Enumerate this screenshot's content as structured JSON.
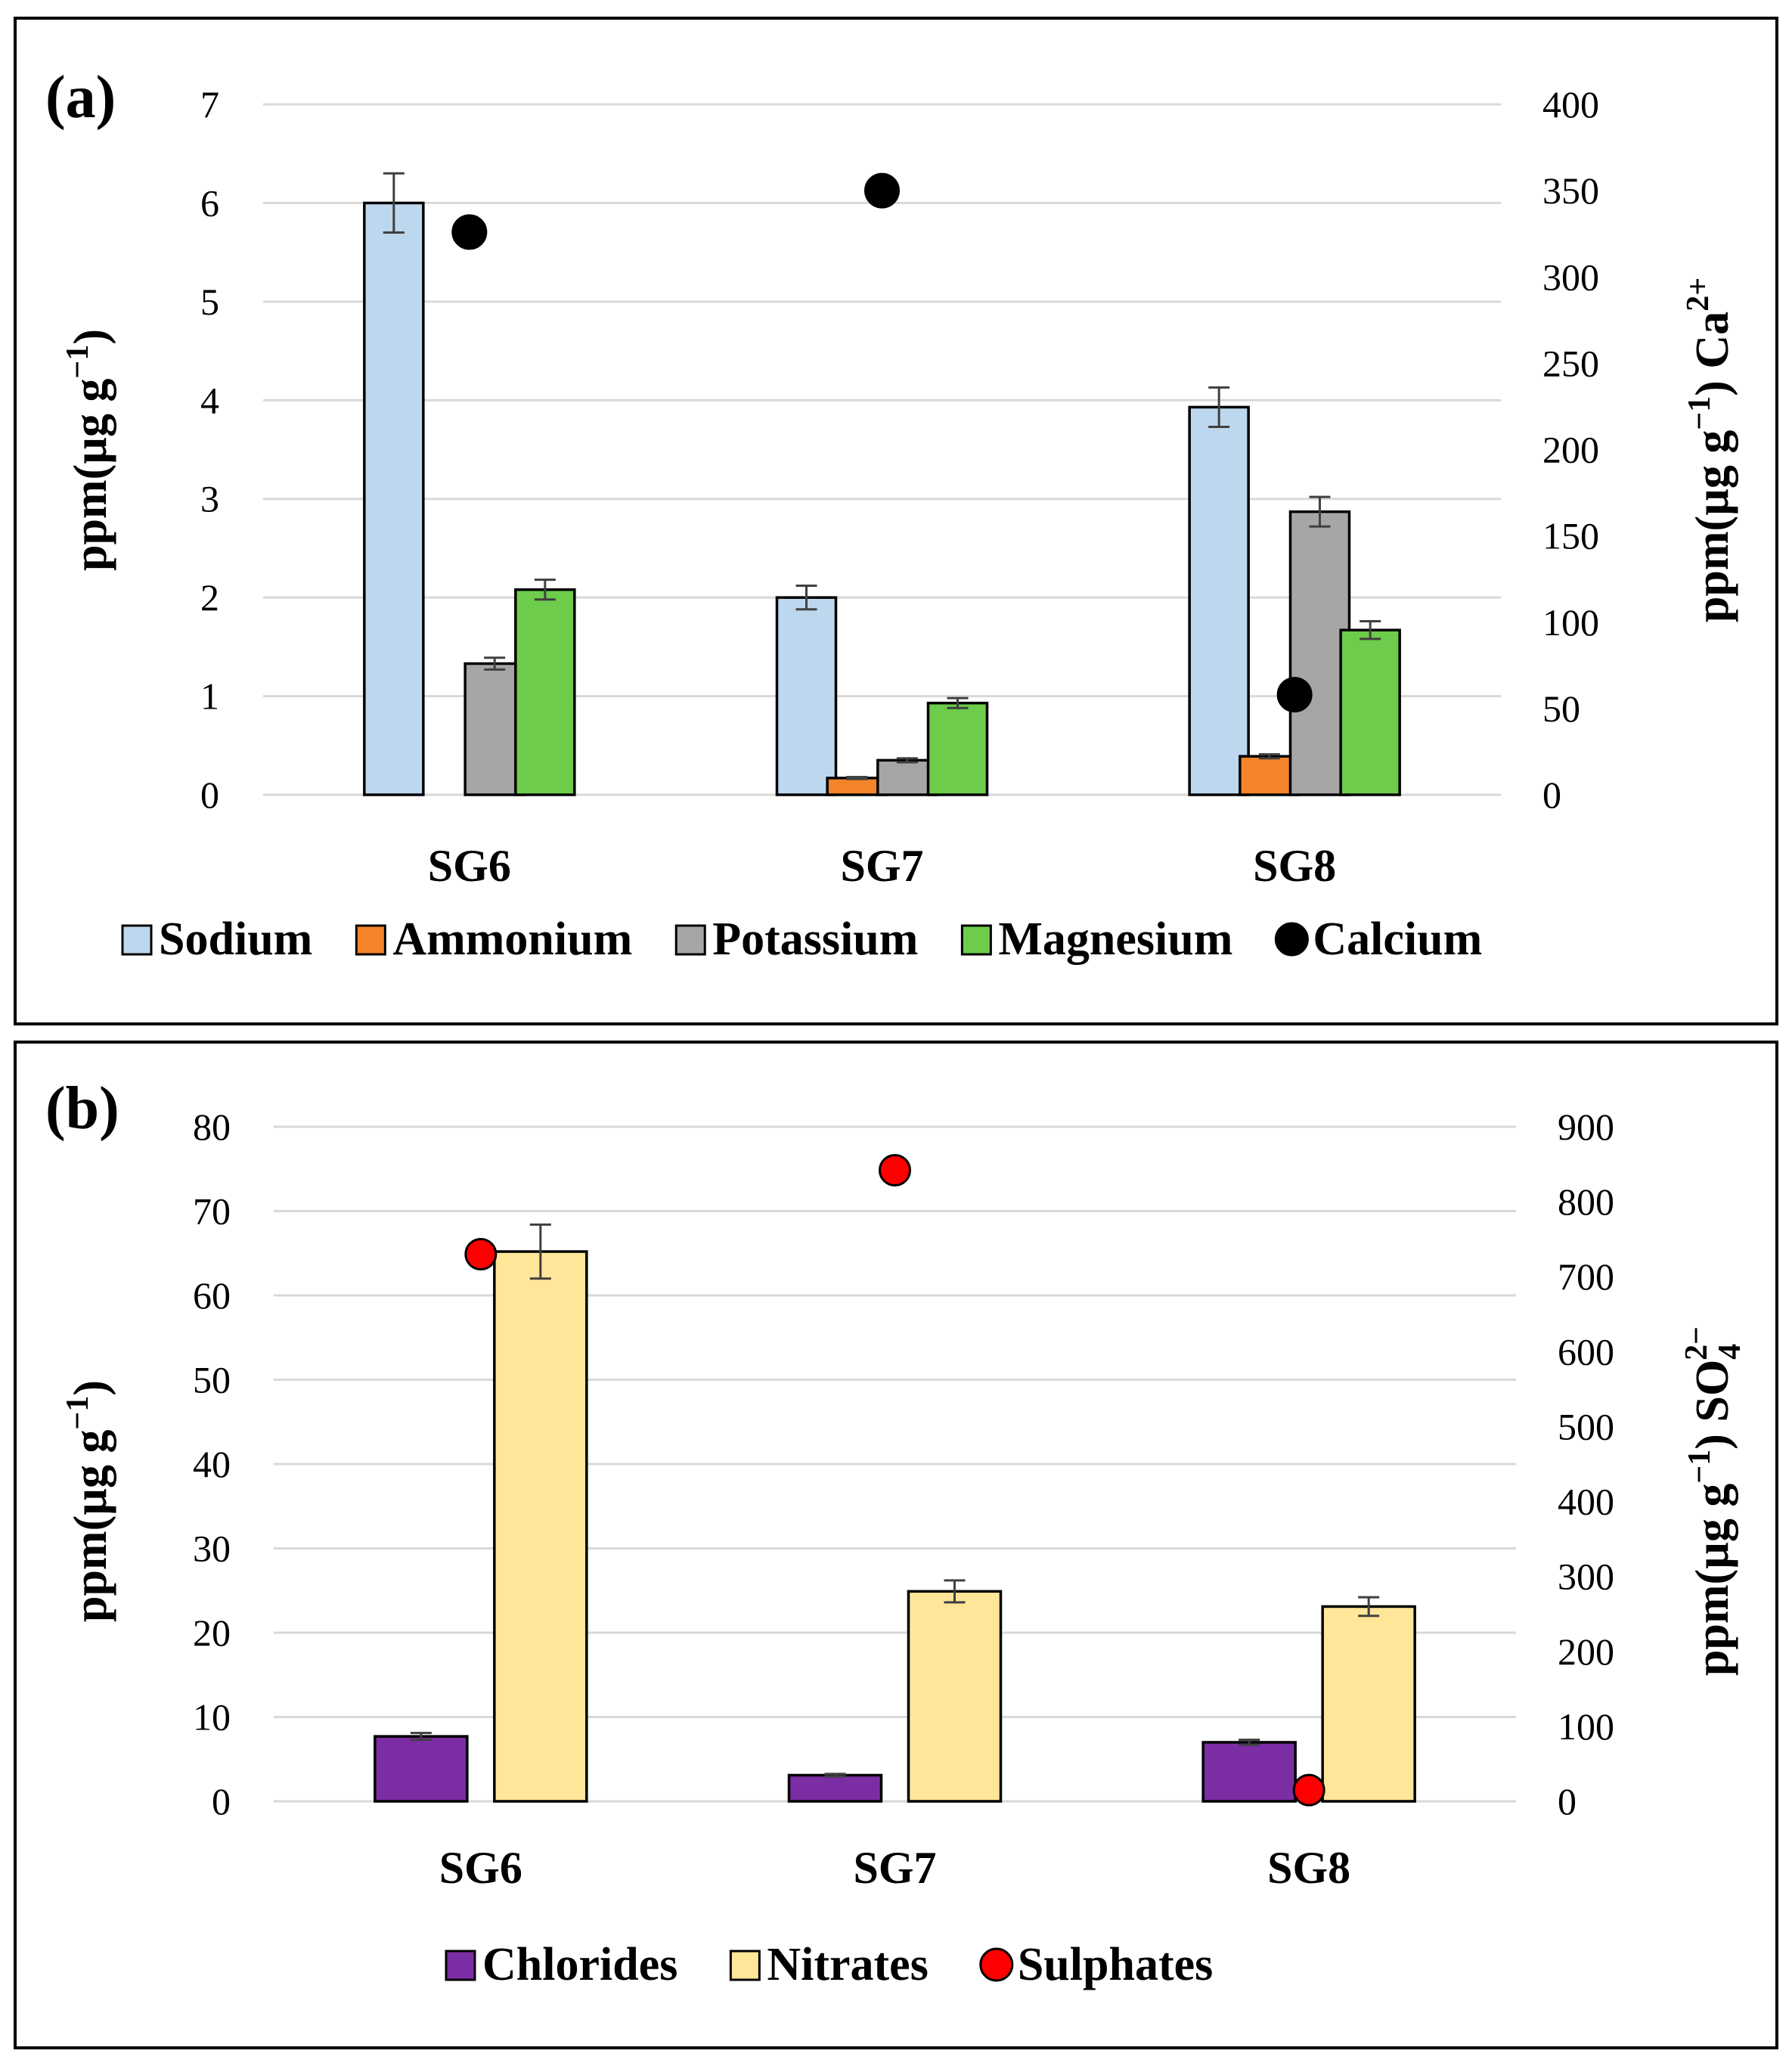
{
  "chart_data": [
    {
      "panel_label": "(a)",
      "type": "bar",
      "categories": [
        "SG6",
        "SG7",
        "SG8"
      ],
      "ylabel_left": "ppm(µg g",
      "ylabel_left_sup": "−1",
      "ylabel_left_close": ")",
      "ylabel_right": "ppm(µg g",
      "ylabel_right_sup": "−1",
      "ylabel_right_close": ") Ca",
      "ylabel_right_ion_sup": "2+",
      "ylim_left": [
        0,
        7
      ],
      "ylim_right": [
        0,
        400
      ],
      "yticks_left": [
        "0",
        "1",
        "2",
        "3",
        "4",
        "5",
        "6",
        "7"
      ],
      "yticks_right": [
        "0",
        "50",
        "100",
        "150",
        "200",
        "250",
        "300",
        "350",
        "400"
      ],
      "grid": true,
      "legend_position": "bottom",
      "series": [
        {
          "name": "Sodium",
          "axis": "left",
          "kind": "bar",
          "color": "#bdd7ee",
          "values": [
            6.0,
            2.0,
            3.93
          ],
          "errors": [
            0.3,
            0.12,
            0.2
          ]
        },
        {
          "name": "Ammonium",
          "axis": "left",
          "kind": "bar",
          "color": "#f4842a",
          "values": [
            0,
            0.17,
            0.39
          ],
          "errors": [
            0,
            0.01,
            0.02
          ]
        },
        {
          "name": "Potassium",
          "axis": "left",
          "kind": "bar",
          "color": "#a6a6a6",
          "values": [
            1.33,
            0.35,
            2.87
          ],
          "errors": [
            0.06,
            0.02,
            0.15
          ]
        },
        {
          "name": "Magnesium",
          "axis": "left",
          "kind": "bar",
          "color": "#6dcc4b",
          "values": [
            2.08,
            0.93,
            1.67
          ],
          "errors": [
            0.1,
            0.05,
            0.09
          ]
        },
        {
          "name": "Calcium",
          "axis": "right",
          "kind": "point",
          "color": "#000000",
          "values": [
            326,
            350,
            58
          ]
        }
      ]
    },
    {
      "panel_label": "(b)",
      "type": "bar",
      "categories": [
        "SG6",
        "SG7",
        "SG8"
      ],
      "ylabel_left": "ppm(µg g",
      "ylabel_left_sup": "−1",
      "ylabel_left_close": ")",
      "ylabel_right": "ppm(µg g",
      "ylabel_right_sup": "−1",
      "ylabel_right_close": ") SO",
      "ylabel_right_ion_sub": "4",
      "ylabel_right_ion_sup": "2−",
      "ylim_left": [
        0,
        80
      ],
      "ylim_right": [
        0,
        900
      ],
      "yticks_left": [
        "0",
        "10",
        "20",
        "30",
        "40",
        "50",
        "60",
        "70",
        "80"
      ],
      "yticks_right": [
        "0",
        "100",
        "200",
        "300",
        "400",
        "500",
        "600",
        "700",
        "800",
        "900"
      ],
      "grid": true,
      "legend_position": "bottom",
      "series": [
        {
          "name": "Chlorides",
          "axis": "left",
          "kind": "bar",
          "color": "#7b2da3",
          "values": [
            7.7,
            3.1,
            7.0
          ],
          "errors": [
            0.4,
            0.15,
            0.3
          ]
        },
        {
          "name": "Nitrates",
          "axis": "left",
          "kind": "bar",
          "color": "#ffe699",
          "values": [
            65.2,
            24.9,
            23.1
          ],
          "errors": [
            3.2,
            1.3,
            1.1
          ]
        },
        {
          "name": "Sulphates",
          "axis": "right",
          "kind": "point",
          "color": "#ff0000",
          "values": [
            730,
            842,
            15
          ]
        }
      ]
    }
  ]
}
